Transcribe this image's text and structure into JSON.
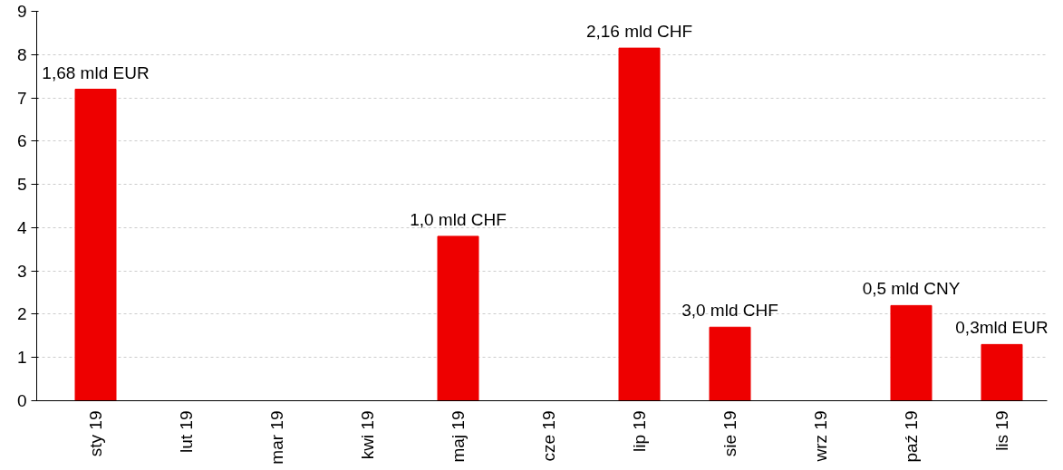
{
  "chart_data": {
    "type": "bar",
    "categories": [
      "sty 19",
      "lut 19",
      "mar 19",
      "kwi 19",
      "maj 19",
      "cze 19",
      "lip 19",
      "sie 19",
      "wrz 19",
      "paź 19",
      "lis 19"
    ],
    "values": [
      7.2,
      null,
      null,
      null,
      3.8,
      null,
      8.15,
      1.7,
      null,
      2.2,
      1.3
    ],
    "annotations": [
      {
        "text": "1,68 mld EUR",
        "x": "sty 19",
        "y": 7.2
      },
      {
        "text": "1,0 mld CHF",
        "x": "maj 19",
        "y": 3.8
      },
      {
        "text": "2,16 mld CHF",
        "x": "lip 19",
        "y": 8.15
      },
      {
        "text": "3,0 mld CHF",
        "x": "sie 19",
        "y": 1.7
      },
      {
        "text": "0,5 mld CNY",
        "x": "paź 19",
        "y": 2.2
      },
      {
        "text": "0,3mld EUR",
        "x": "lis 19",
        "y": 1.3
      }
    ],
    "color": "#ee0000",
    "ylim": [
      0,
      9
    ],
    "yticks": [
      0,
      1,
      2,
      3,
      4,
      5,
      6,
      7,
      8,
      9
    ],
    "grid": "y"
  }
}
